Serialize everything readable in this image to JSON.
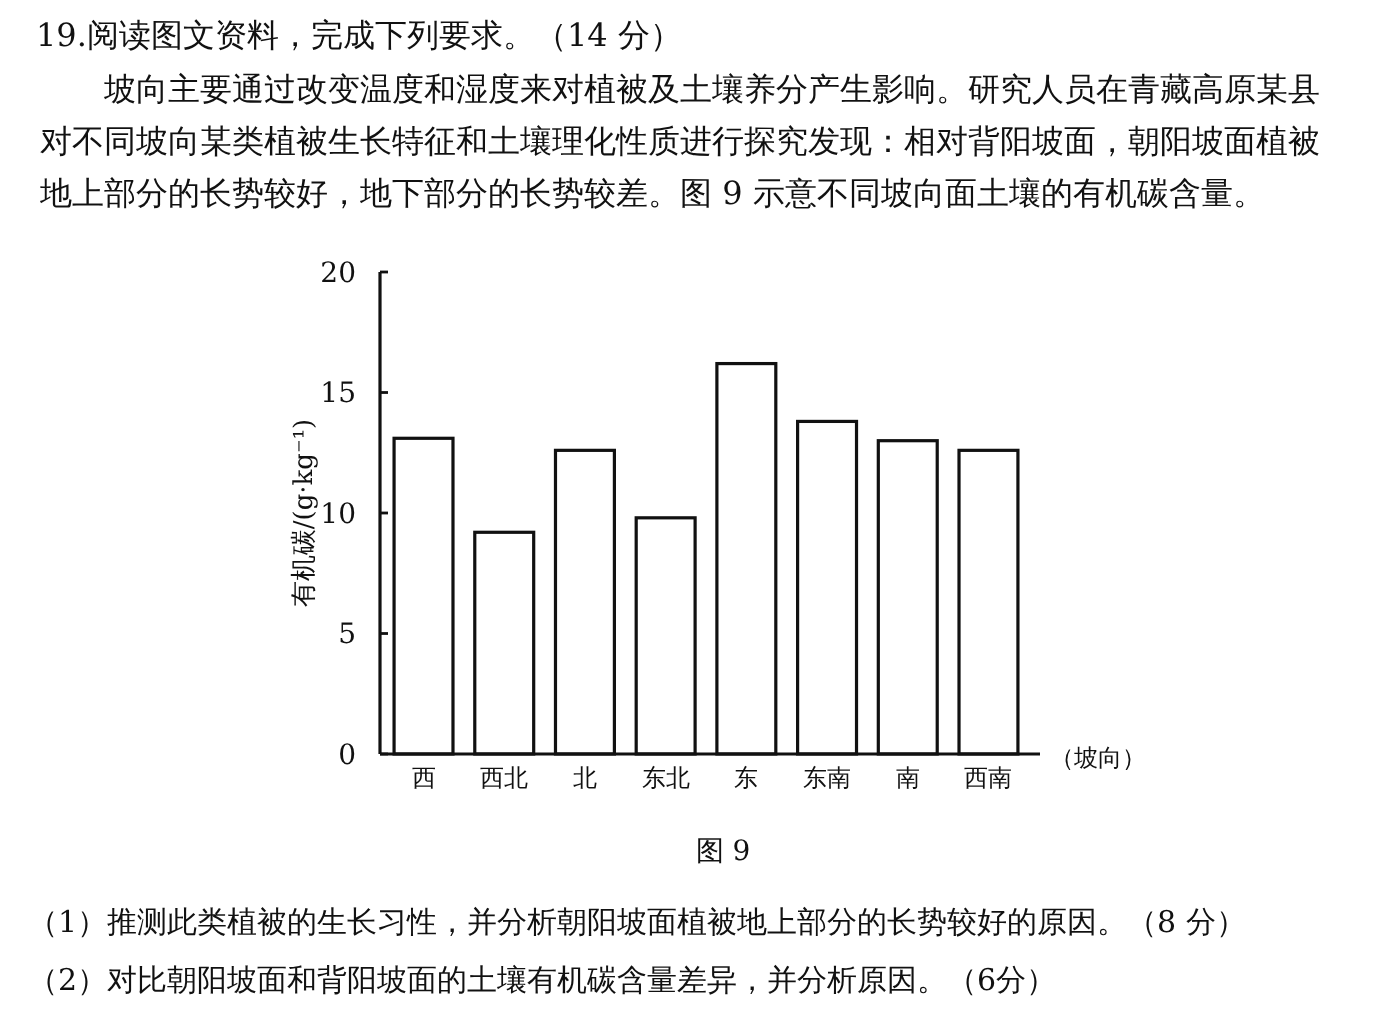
{
  "chart_data": {
    "type": "bar",
    "title": "19.阅读图文资料，完成下列要求。（14 分）",
    "subtitle": "坡向主要通过改变温度和湿度来对植被及土壤养分产生影响。研究人员在青藏高原某县对不同坡向某类植被生长特征和土壤理化性质进行探究发现：相对背阳坡面，朝阳坡面植被地上部分的长势较好，地下部分的长势较差。图 9 示意不同坡向面土壤的有机碳含量。",
    "ylabel": "有机碳/(g·kg⁻¹)",
    "xlabel": "（坡向）",
    "categories": [
      "西",
      "西北",
      "北",
      "东北",
      "东",
      "东南",
      "南",
      "西南"
    ],
    "values": [
      13.1,
      9.2,
      12.6,
      9.8,
      16.2,
      13.8,
      13.0,
      12.6
    ],
    "color": "#ffffff",
    "ylim": [
      0,
      20
    ],
    "yticks": [
      0,
      5,
      10,
      15,
      20
    ],
    "annotations": [
      "图 9",
      "（1）推测此类植被的生长习性，并分析朝阳坡面植被地上部分的长势较好的原因。（8 分）",
      "（2）对比朝阳坡面和背阳坡面的土壤有机碳含量差异，并分析原因。（6分）"
    ]
  }
}
